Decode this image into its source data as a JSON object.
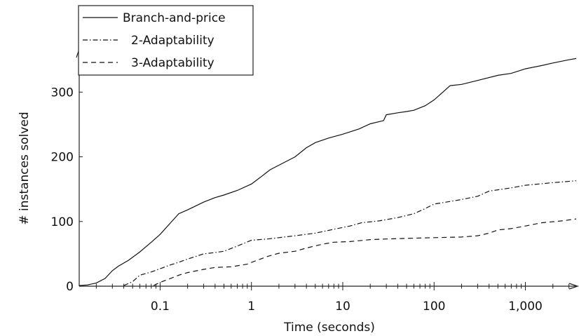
{
  "chart_data": {
    "type": "line",
    "xlabel": "Time (seconds)",
    "ylabel": "# instances solved",
    "xscale": "log",
    "xlim": [
      0.013,
      3600
    ],
    "ylim": [
      0,
      360
    ],
    "x_ticks": [
      0.1,
      1,
      10,
      100,
      1000
    ],
    "x_tick_labels": [
      "0.1",
      "1",
      "10",
      "100",
      "1,000"
    ],
    "y_ticks": [
      0,
      100,
      200,
      300
    ],
    "y_tick_labels": [
      "0",
      "100",
      "200",
      "300"
    ],
    "grid": false,
    "legend_position": "top-left",
    "series": [
      {
        "name": "Branch-and-price",
        "dash": "solid",
        "points": [
          [
            0.013,
            1
          ],
          [
            0.016,
            2
          ],
          [
            0.02,
            5
          ],
          [
            0.025,
            12
          ],
          [
            0.03,
            24
          ],
          [
            0.035,
            31
          ],
          [
            0.045,
            40
          ],
          [
            0.06,
            53
          ],
          [
            0.08,
            68
          ],
          [
            0.1,
            80
          ],
          [
            0.13,
            98
          ],
          [
            0.16,
            112
          ],
          [
            0.2,
            118
          ],
          [
            0.3,
            130
          ],
          [
            0.4,
            137
          ],
          [
            0.5,
            141
          ],
          [
            0.7,
            148
          ],
          [
            1,
            158
          ],
          [
            1.3,
            170
          ],
          [
            1.6,
            180
          ],
          [
            2,
            187
          ],
          [
            3,
            200
          ],
          [
            4,
            214
          ],
          [
            5,
            222
          ],
          [
            7,
            229
          ],
          [
            10,
            235
          ],
          [
            15,
            243
          ],
          [
            20,
            251
          ],
          [
            28,
            256
          ],
          [
            30,
            265
          ],
          [
            40,
            268
          ],
          [
            50,
            270
          ],
          [
            60,
            272
          ],
          [
            80,
            279
          ],
          [
            100,
            288
          ],
          [
            150,
            310
          ],
          [
            200,
            312
          ],
          [
            300,
            318
          ],
          [
            500,
            326
          ],
          [
            700,
            329
          ],
          [
            1000,
            336
          ],
          [
            1500,
            341
          ],
          [
            2000,
            345
          ],
          [
            3000,
            350
          ],
          [
            3600,
            352
          ]
        ]
      },
      {
        "name": "2-Adaptability",
        "dash": "dashdot",
        "points": [
          [
            0.04,
            1
          ],
          [
            0.05,
            7
          ],
          [
            0.06,
            17
          ],
          [
            0.08,
            22
          ],
          [
            0.1,
            27
          ],
          [
            0.13,
            33
          ],
          [
            0.16,
            37
          ],
          [
            0.2,
            42
          ],
          [
            0.3,
            50
          ],
          [
            0.4,
            52
          ],
          [
            0.5,
            54
          ],
          [
            0.7,
            62
          ],
          [
            1,
            71
          ],
          [
            1.5,
            73
          ],
          [
            2,
            75
          ],
          [
            3,
            78
          ],
          [
            5,
            82
          ],
          [
            8,
            88
          ],
          [
            12,
            93
          ],
          [
            16,
            98
          ],
          [
            25,
            101
          ],
          [
            40,
            106
          ],
          [
            60,
            112
          ],
          [
            80,
            120
          ],
          [
            100,
            127
          ],
          [
            150,
            131
          ],
          [
            200,
            134
          ],
          [
            300,
            139
          ],
          [
            400,
            147
          ],
          [
            500,
            149
          ],
          [
            700,
            152
          ],
          [
            1000,
            156
          ],
          [
            2000,
            160
          ],
          [
            3600,
            163
          ]
        ]
      },
      {
        "name": "3-Adaptability",
        "dash": "dashed",
        "points": [
          [
            0.085,
            1
          ],
          [
            0.1,
            6
          ],
          [
            0.13,
            12
          ],
          [
            0.16,
            17
          ],
          [
            0.2,
            21
          ],
          [
            0.3,
            26
          ],
          [
            0.4,
            29
          ],
          [
            0.6,
            30
          ],
          [
            0.9,
            34
          ],
          [
            1.1,
            39
          ],
          [
            1.5,
            46
          ],
          [
            2,
            51
          ],
          [
            3,
            54
          ],
          [
            4,
            59
          ],
          [
            6,
            65
          ],
          [
            8,
            68
          ],
          [
            12,
            69
          ],
          [
            20,
            72
          ],
          [
            30,
            73
          ],
          [
            50,
            74
          ],
          [
            100,
            75
          ],
          [
            200,
            76
          ],
          [
            300,
            78
          ],
          [
            400,
            82
          ],
          [
            500,
            87
          ],
          [
            700,
            89
          ],
          [
            1000,
            93
          ],
          [
            1500,
            98
          ],
          [
            2500,
            101
          ],
          [
            3600,
            104
          ]
        ]
      }
    ]
  }
}
